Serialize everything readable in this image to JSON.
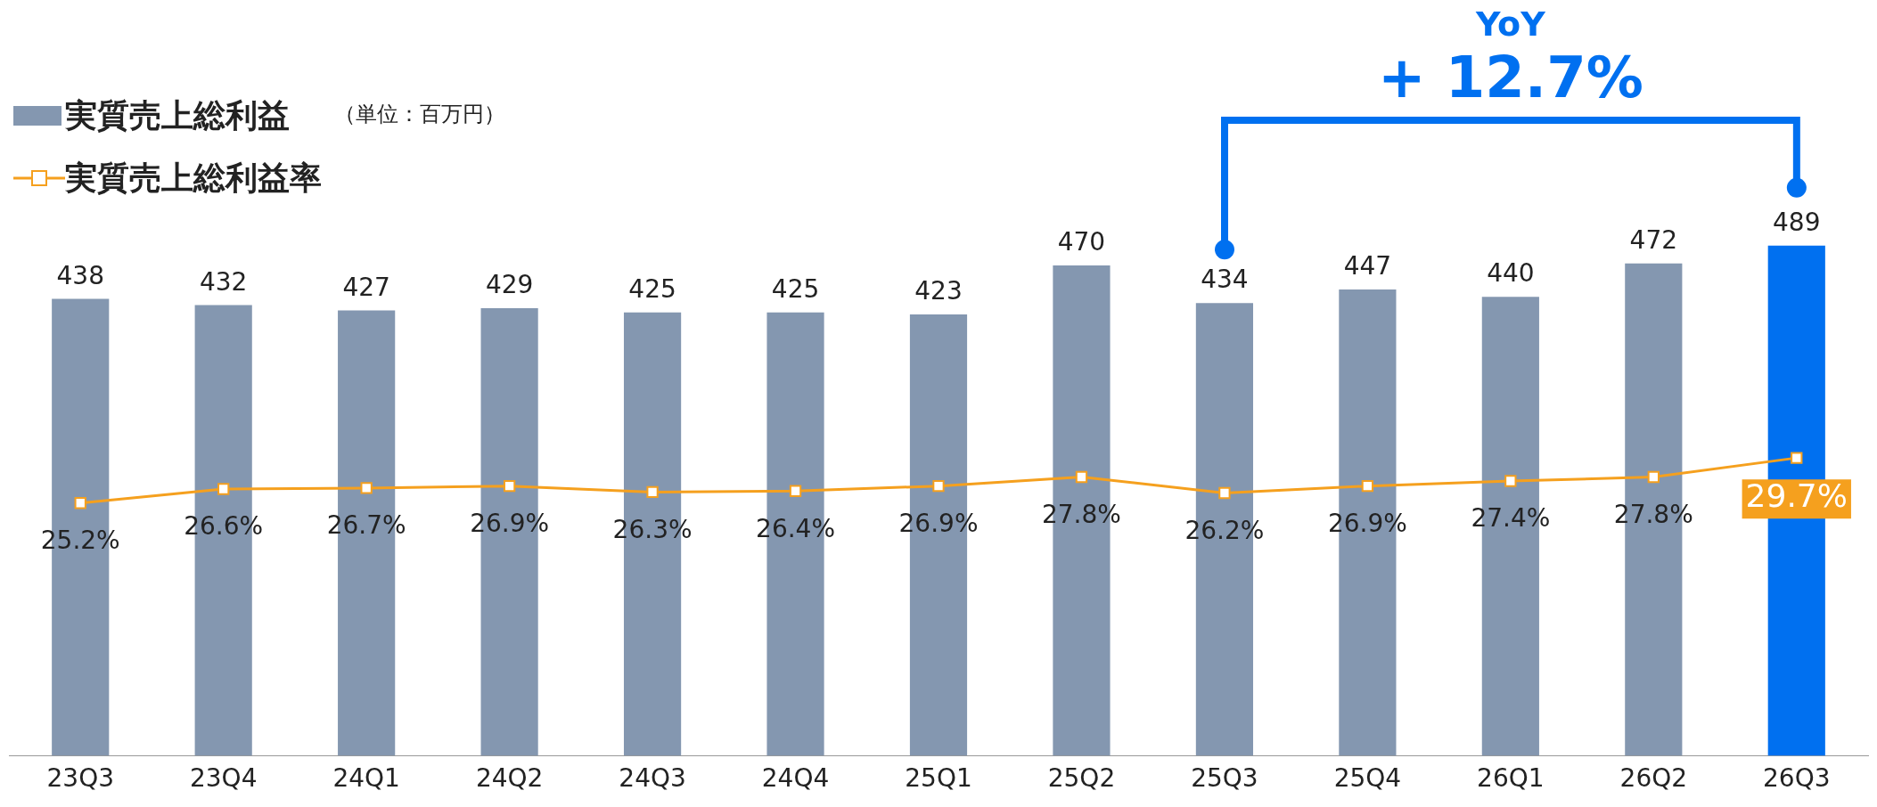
{
  "chart_data": {
    "type": "bar",
    "categories": [
      "23Q3",
      "23Q4",
      "24Q1",
      "24Q2",
      "24Q3",
      "24Q4",
      "25Q1",
      "25Q2",
      "25Q3",
      "25Q4",
      "26Q1",
      "26Q2",
      "26Q3"
    ],
    "series": [
      {
        "name": "実質売上総利益",
        "color": "#8497b0",
        "colors": [
          "#8497b0",
          "#8497b0",
          "#8497b0",
          "#8497b0",
          "#8497b0",
          "#8497b0",
          "#8497b0",
          "#8497b0",
          "#8497b0",
          "#8497b0",
          "#8497b0",
          "#8497b0",
          "#0070f0"
        ],
        "values": [
          438,
          432,
          427,
          429,
          425,
          425,
          423,
          470,
          434,
          447,
          440,
          472,
          489
        ]
      },
      {
        "name": "実質売上総利益率",
        "type": "line",
        "axis": "y2",
        "color": "#f5a01e",
        "values": [
          25.2,
          26.6,
          26.7,
          26.9,
          26.3,
          26.4,
          26.9,
          27.8,
          26.2,
          26.9,
          27.4,
          27.8,
          29.7
        ],
        "value_labels": [
          "25.2%",
          "26.6%",
          "26.7%",
          "26.9%",
          "26.3%",
          "26.4%",
          "26.9%",
          "27.8%",
          "26.2%",
          "26.9%",
          "27.4%",
          "27.8%",
          "29.7%"
        ]
      }
    ],
    "data_labels": true,
    "legend": "top left",
    "marker": "square",
    "grid": false,
    "tick_labels": "x",
    "annotations": [
      "（単位：百万円）",
      "YoY",
      "+ 12.7%"
    ]
  }
}
